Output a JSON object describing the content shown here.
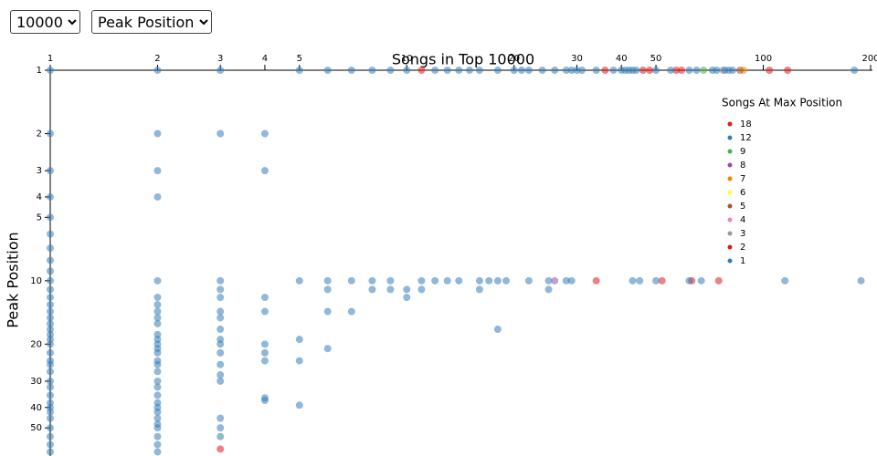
{
  "controls": {
    "size": "10000",
    "metric": "Peak Position"
  },
  "chart_data": {
    "type": "scatter",
    "title": "Songs in Top 10000",
    "y_label": "Peak Position",
    "legend_title": "Songs At Max Position",
    "legend_position": "right",
    "x_scale": "log",
    "y_scale": "log",
    "y_inverted": true,
    "xlim": [
      1,
      200
    ],
    "ylim": [
      1,
      68
    ],
    "xticks": [
      1,
      2,
      3,
      4,
      5,
      10,
      20,
      30,
      40,
      50,
      100,
      200
    ],
    "yticks": [
      1,
      2,
      3,
      4,
      5,
      10,
      20,
      30,
      40,
      50
    ],
    "series": [
      {
        "name": "18",
        "color": "#e41a1c",
        "x": [],
        "values": []
      },
      {
        "name": "12",
        "color": "#377eb8",
        "x": [],
        "values": []
      },
      {
        "name": "9",
        "color": "#4daf4a",
        "x": [
          68
        ],
        "values": [
          1
        ]
      },
      {
        "name": "8",
        "color": "#984ea3",
        "x": [
          26
        ],
        "values": [
          10
        ]
      },
      {
        "name": "7",
        "color": "#ff7f00",
        "x": [
          88
        ],
        "values": [
          1
        ]
      },
      {
        "name": "6",
        "color": "#ffff33",
        "x": [],
        "values": []
      },
      {
        "name": "5",
        "color": "#a65628",
        "x": [
          86
        ],
        "values": [
          1
        ]
      },
      {
        "name": "4",
        "color": "#f781bf",
        "x": [],
        "values": []
      },
      {
        "name": "3",
        "color": "#999999",
        "x": [
          77
        ],
        "values": [
          1
        ]
      },
      {
        "name": "2",
        "color": "#e41a1c",
        "x": [
          11,
          36,
          46,
          48,
          57,
          59,
          104,
          117,
          34,
          52,
          63,
          75,
          3
        ],
        "values": [
          1,
          1,
          1,
          1,
          1,
          1,
          1,
          1,
          10,
          10,
          10,
          10,
          63
        ]
      },
      {
        "name": "1",
        "color": "#377eb8",
        "x": [
          1,
          2,
          3,
          5,
          6,
          7,
          8,
          9,
          10,
          12,
          13,
          14,
          15,
          16,
          18,
          20,
          21,
          22,
          24,
          26,
          28,
          29,
          30,
          31,
          34,
          38,
          40,
          41,
          42,
          43,
          44,
          50,
          55,
          62,
          65,
          72,
          74,
          78,
          80,
          82,
          180,
          1,
          1,
          1,
          1,
          1,
          1,
          1,
          1,
          1,
          1,
          1,
          1,
          1,
          1,
          1,
          1,
          1,
          1,
          1,
          1,
          1,
          1,
          1,
          1,
          1,
          1,
          1,
          1,
          1,
          1,
          1,
          1,
          1,
          1,
          2,
          2,
          2,
          2,
          2,
          2,
          2,
          2,
          2,
          2,
          2,
          2,
          2,
          2,
          2,
          2,
          2,
          2,
          2,
          2,
          2,
          2,
          2,
          2,
          2,
          2,
          2,
          2,
          2,
          3,
          3,
          3,
          3,
          3,
          3,
          3,
          3,
          3,
          3,
          3,
          3,
          3,
          3,
          3,
          3,
          4,
          4,
          4,
          4,
          4,
          4,
          4,
          4,
          4,
          5,
          5,
          5,
          5,
          6,
          6,
          6,
          6,
          7,
          7,
          8,
          8,
          9,
          9,
          10,
          10,
          11,
          11,
          12,
          13,
          14,
          16,
          17,
          18,
          19,
          22,
          25,
          28,
          29,
          43,
          45,
          50,
          62,
          67,
          115,
          188,
          25,
          16,
          18
        ],
        "values": [
          1,
          1,
          1,
          1,
          1,
          1,
          1,
          1,
          1,
          1,
          1,
          1,
          1,
          1,
          1,
          1,
          1,
          1,
          1,
          1,
          1,
          1,
          1,
          1,
          1,
          1,
          1,
          1,
          1,
          1,
          1,
          1,
          1,
          1,
          1,
          1,
          1,
          1,
          1,
          1,
          1,
          2,
          3,
          4,
          5,
          6,
          7,
          8,
          9,
          10,
          11,
          12,
          13,
          14,
          15,
          16,
          17,
          18,
          19,
          20,
          22,
          24,
          25,
          27,
          30,
          32,
          35,
          38,
          40,
          42,
          45,
          50,
          55,
          60,
          65,
          2,
          3,
          4,
          10,
          12,
          13,
          14,
          15,
          16,
          18,
          19,
          20,
          21,
          22,
          24,
          25,
          27,
          30,
          32,
          35,
          38,
          40,
          42,
          45,
          48,
          50,
          55,
          60,
          65,
          2,
          10,
          11,
          12,
          14,
          15,
          17,
          19,
          20,
          22,
          25,
          28,
          30,
          45,
          50,
          55,
          2,
          3,
          12,
          14,
          20,
          22,
          24,
          36,
          37,
          10,
          19,
          24,
          39,
          10,
          11,
          14,
          21,
          10,
          14,
          10,
          11,
          10,
          11,
          11,
          12,
          10,
          11,
          10,
          10,
          10,
          10,
          10,
          10,
          10,
          10,
          10,
          10,
          10,
          10,
          10,
          10,
          10,
          10,
          10,
          10,
          11,
          11,
          17
        ]
      }
    ]
  }
}
